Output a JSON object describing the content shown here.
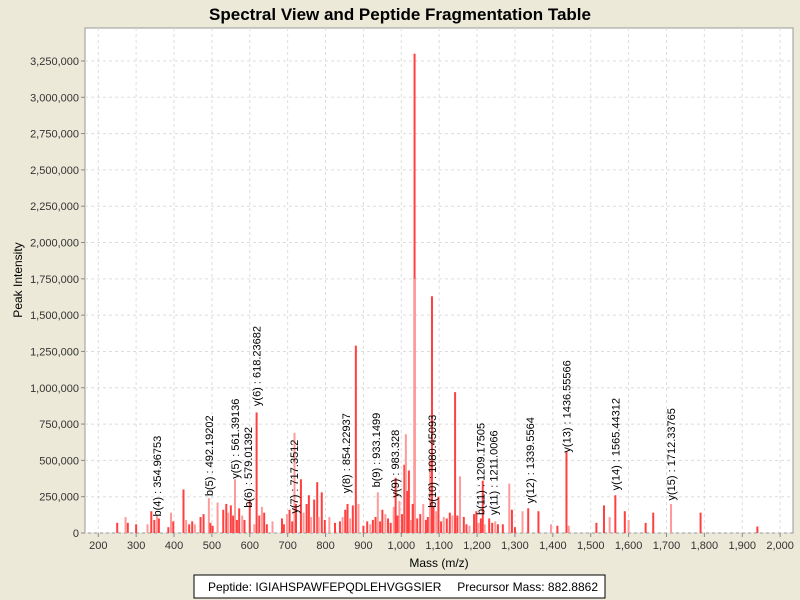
{
  "chart_data": {
    "type": "bar",
    "title": "Spectral View and Peptide Fragmentation Table",
    "xlabel": "Mass (m/z)",
    "ylabel": "Peak Intensity",
    "xlim": [
      165,
      2034
    ],
    "ylim": [
      0,
      3477000
    ],
    "xticks": [
      200,
      300,
      400,
      500,
      600,
      700,
      800,
      900,
      1000,
      1100,
      1200,
      1300,
      1400,
      1500,
      1600,
      1700,
      1800,
      1900,
      2000
    ],
    "xtick_labels": [
      "200",
      "300",
      "400",
      "500",
      "600",
      "700",
      "800",
      "900",
      "1,000",
      "1,100",
      "1,200",
      "1,300",
      "1,400",
      "1,500",
      "1,600",
      "1,700",
      "1,800",
      "1,900",
      "2,000"
    ],
    "yticks": [
      0,
      250000,
      500000,
      750000,
      1000000,
      1250000,
      1500000,
      1750000,
      2000000,
      2250000,
      2500000,
      2750000,
      3000000,
      3250000
    ],
    "ytick_labels": [
      "0",
      "250,000",
      "500,000",
      "750,000",
      "1,000,000",
      "1,250,000",
      "1,500,000",
      "1,750,000",
      "2,000,000",
      "2,250,000",
      "2,500,000",
      "2,750,000",
      "3,000,000",
      "3,250,000"
    ],
    "grid": true,
    "peak_color": "#ff4040",
    "peak_color_light": "#ff9a9a",
    "peaks": [
      [
        250,
        70000
      ],
      [
        272,
        110000
      ],
      [
        278,
        70000
      ],
      [
        300,
        60000
      ],
      [
        330,
        60000
      ],
      [
        340,
        150000
      ],
      [
        348,
        90000
      ],
      [
        355,
        120000
      ],
      [
        360,
        100000
      ],
      [
        385,
        40000
      ],
      [
        392,
        140000
      ],
      [
        398,
        80000
      ],
      [
        425,
        300000
      ],
      [
        432,
        90000
      ],
      [
        440,
        60000
      ],
      [
        448,
        80000
      ],
      [
        455,
        60000
      ],
      [
        470,
        110000
      ],
      [
        478,
        130000
      ],
      [
        492,
        240000
      ],
      [
        496,
        70000
      ],
      [
        502,
        50000
      ],
      [
        515,
        210000
      ],
      [
        530,
        160000
      ],
      [
        538,
        200000
      ],
      [
        543,
        140000
      ],
      [
        550,
        190000
      ],
      [
        556,
        120000
      ],
      [
        561,
        370000
      ],
      [
        566,
        90000
      ],
      [
        572,
        170000
      ],
      [
        580,
        120000
      ],
      [
        586,
        90000
      ],
      [
        600,
        230000
      ],
      [
        612,
        60000
      ],
      [
        618,
        830000
      ],
      [
        625,
        120000
      ],
      [
        632,
        180000
      ],
      [
        638,
        140000
      ],
      [
        645,
        60000
      ],
      [
        660,
        80000
      ],
      [
        685,
        100000
      ],
      [
        690,
        60000
      ],
      [
        698,
        130000
      ],
      [
        705,
        160000
      ],
      [
        712,
        80000
      ],
      [
        718,
        690000
      ],
      [
        722,
        200000
      ],
      [
        735,
        370000
      ],
      [
        742,
        140000
      ],
      [
        750,
        200000
      ],
      [
        756,
        260000
      ],
      [
        762,
        110000
      ],
      [
        770,
        230000
      ],
      [
        778,
        350000
      ],
      [
        782,
        110000
      ],
      [
        790,
        280000
      ],
      [
        798,
        90000
      ],
      [
        810,
        110000
      ],
      [
        825,
        70000
      ],
      [
        838,
        80000
      ],
      [
        845,
        110000
      ],
      [
        852,
        160000
      ],
      [
        858,
        200000
      ],
      [
        865,
        100000
      ],
      [
        872,
        190000
      ],
      [
        880,
        1290000
      ],
      [
        887,
        200000
      ],
      [
        900,
        50000
      ],
      [
        910,
        80000
      ],
      [
        918,
        60000
      ],
      [
        925,
        90000
      ],
      [
        932,
        110000
      ],
      [
        938,
        280000
      ],
      [
        944,
        80000
      ],
      [
        950,
        160000
      ],
      [
        958,
        130000
      ],
      [
        965,
        100000
      ],
      [
        972,
        70000
      ],
      [
        980,
        180000
      ],
      [
        985,
        380000
      ],
      [
        990,
        120000
      ],
      [
        995,
        220000
      ],
      [
        1002,
        130000
      ],
      [
        1008,
        470000
      ],
      [
        1012,
        680000
      ],
      [
        1016,
        290000
      ],
      [
        1020,
        430000
      ],
      [
        1025,
        90000
      ],
      [
        1030,
        200000
      ],
      [
        1035,
        3300000
      ],
      [
        1036,
        1750000
      ],
      [
        1042,
        100000
      ],
      [
        1050,
        130000
      ],
      [
        1058,
        200000
      ],
      [
        1065,
        90000
      ],
      [
        1070,
        110000
      ],
      [
        1076,
        500000
      ],
      [
        1081,
        1630000
      ],
      [
        1085,
        180000
      ],
      [
        1092,
        150000
      ],
      [
        1098,
        250000
      ],
      [
        1105,
        80000
      ],
      [
        1112,
        110000
      ],
      [
        1120,
        100000
      ],
      [
        1128,
        140000
      ],
      [
        1135,
        120000
      ],
      [
        1142,
        970000
      ],
      [
        1148,
        120000
      ],
      [
        1155,
        390000
      ],
      [
        1165,
        110000
      ],
      [
        1172,
        60000
      ],
      [
        1180,
        50000
      ],
      [
        1192,
        130000
      ],
      [
        1198,
        150000
      ],
      [
        1204,
        70000
      ],
      [
        1210,
        100000
      ],
      [
        1215,
        360000
      ],
      [
        1220,
        60000
      ],
      [
        1232,
        100000
      ],
      [
        1240,
        70000
      ],
      [
        1248,
        80000
      ],
      [
        1255,
        60000
      ],
      [
        1268,
        60000
      ],
      [
        1285,
        340000
      ],
      [
        1292,
        160000
      ],
      [
        1300,
        40000
      ],
      [
        1320,
        150000
      ],
      [
        1335,
        170000
      ],
      [
        1362,
        150000
      ],
      [
        1395,
        60000
      ],
      [
        1412,
        50000
      ],
      [
        1436,
        560000
      ],
      [
        1442,
        50000
      ],
      [
        1515,
        70000
      ],
      [
        1535,
        190000
      ],
      [
        1550,
        110000
      ],
      [
        1565,
        260000
      ],
      [
        1590,
        150000
      ],
      [
        1600,
        90000
      ],
      [
        1645,
        70000
      ],
      [
        1665,
        140000
      ],
      [
        1712,
        200000
      ],
      [
        1790,
        140000
      ],
      [
        1940,
        45000
      ]
    ],
    "annotations": [
      {
        "mz": 354.96753,
        "at": 100000,
        "label": "b(4) : 354.96753"
      },
      {
        "mz": 492.19202,
        "at": 240000,
        "label": "b(5) : 492.19202"
      },
      {
        "mz": 561.39136,
        "at": 360000,
        "label": "y(5) : 561.39136"
      },
      {
        "mz": 579.01392,
        "at": 160000,
        "label": "b(6) : 579.01392"
      },
      {
        "mz": 618.23682,
        "at": 860000,
        "label": "y(6) : 618.23682"
      },
      {
        "mz": 717.3512,
        "at": 120000,
        "label": "y(7) : 717.3512"
      },
      {
        "mz": 854.22937,
        "at": 260000,
        "label": "y(8) : 854.22937"
      },
      {
        "mz": 933.1499,
        "at": 300000,
        "label": "b(9) : 933.1499"
      },
      {
        "mz": 983.328,
        "at": 230000,
        "label": "y(9) : 983.328"
      },
      {
        "mz": 1080.45093,
        "at": 160000,
        "label": "b(10) : 1080.45093"
      },
      {
        "mz": 1209.17505,
        "at": 110000,
        "label": "b(11) : 1209.17505"
      },
      {
        "mz": 1211.0066,
        "at": 110000,
        "label": "y(11) : 1211.0066"
      },
      {
        "mz": 1339.5564,
        "at": 190000,
        "label": "y(12) : 1339.5564"
      },
      {
        "mz": 1436.55566,
        "at": 540000,
        "label": "y(13) : 1436.55566"
      },
      {
        "mz": 1565.44312,
        "at": 280000,
        "label": "y(14) : 1565.44312"
      },
      {
        "mz": 1712.33765,
        "at": 210000,
        "label": "y(15) : 1712.33765"
      }
    ],
    "legend": {
      "peptide_label": "Peptide: IGIAHSPAWFEPQDLEHVGGSIER",
      "precursor_label": "Precursor Mass: 882.8862",
      "placement": "bottom"
    }
  }
}
